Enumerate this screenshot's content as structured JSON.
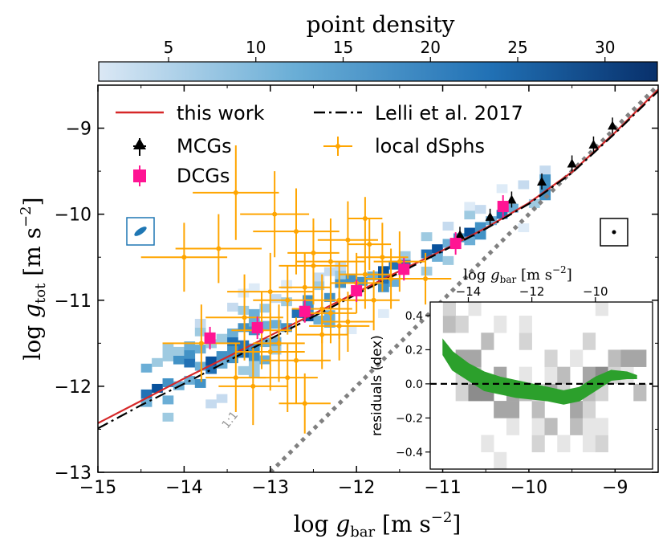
{
  "colorbar": {
    "label": "point density",
    "ticks": [
      5,
      10,
      15,
      20,
      25,
      30
    ],
    "range": [
      1,
      33
    ],
    "colors": [
      "#d6e6f4",
      "#08306b"
    ]
  },
  "chart_data": [
    {
      "type": "scatter",
      "xlabel": "log g_bar [m s^-2]",
      "ylabel": "log g_tot [m s^-2]",
      "xlim": [
        -15,
        -8.5
      ],
      "ylim": [
        -13,
        -8.5
      ],
      "xticks": [
        -15,
        -14,
        -13,
        -12,
        -11,
        -10,
        -9
      ],
      "yticks": [
        -13,
        -12,
        -11,
        -10,
        -9
      ],
      "grid": false,
      "legend_position": "top-left",
      "series": [
        {
          "name": "this work",
          "kind": "line",
          "color": "#d62728",
          "x": [
            -15,
            -14.5,
            -14,
            -13.5,
            -13,
            -12.5,
            -12,
            -11.5,
            -11,
            -10.5,
            -10,
            -9.5,
            -9,
            -8.5
          ],
          "y": [
            -12.43,
            -12.17,
            -11.91,
            -11.66,
            -11.41,
            -11.16,
            -10.91,
            -10.66,
            -10.42,
            -10.16,
            -9.87,
            -9.51,
            -9.05,
            -8.55
          ]
        },
        {
          "name": "Lelli et al. 2017",
          "kind": "line",
          "color": "#000000",
          "dash": "dash-dot",
          "x": [
            -15,
            -14.5,
            -14,
            -13.5,
            -13,
            -12.5,
            -12,
            -11.5,
            -11,
            -10.5,
            -10,
            -9.5,
            -9,
            -8.5
          ],
          "y": [
            -12.49,
            -12.22,
            -11.97,
            -11.71,
            -11.45,
            -11.19,
            -10.93,
            -10.68,
            -10.43,
            -10.17,
            -9.88,
            -9.52,
            -9.06,
            -8.57
          ]
        },
        {
          "name": "MCGs",
          "kind": "triangles",
          "color": "#000000",
          "x": [
            -10.8,
            -10.45,
            -10.2,
            -9.85,
            -9.5,
            -9.25,
            -9.03
          ],
          "y": [
            -10.24,
            -10.03,
            -9.83,
            -9.62,
            -9.41,
            -9.19,
            -8.97
          ]
        },
        {
          "name": "DCGs",
          "kind": "squares",
          "color": "#ff1493",
          "x": [
            -13.7,
            -13.15,
            -12.6,
            -12,
            -11.45,
            -10.85,
            -10.3
          ],
          "y": [
            -11.44,
            -11.32,
            -11.13,
            -10.89,
            -10.64,
            -10.34,
            -9.91
          ]
        },
        {
          "name": "local dSphs",
          "kind": "errorbars",
          "color": "#ffa500",
          "x": [
            -13.4,
            -12.95,
            -12.7,
            -12.5,
            -12.3,
            -12.1,
            -11.9,
            -11.7,
            -13.0,
            -12.8,
            -12.6,
            -12.4,
            -12.2,
            -12.0,
            -13.3,
            -13.1,
            -12.9,
            -12.7,
            -12.4,
            -11.8,
            -11.6,
            -12.2,
            -12.5,
            -13.6,
            -14.0,
            -13.8,
            -13.2,
            -12.8,
            -12.3,
            -12.1,
            -11.85,
            -11.5,
            -11.2,
            -11.9,
            -12.6,
            -13.0,
            -13.4
          ],
          "y": [
            -9.75,
            -10.0,
            -10.2,
            -10.45,
            -10.55,
            -10.3,
            -10.7,
            -10.5,
            -10.9,
            -11.0,
            -10.85,
            -11.1,
            -11.0,
            -10.8,
            -11.2,
            -11.35,
            -11.5,
            -11.7,
            -11.4,
            -11.0,
            -10.75,
            -11.3,
            -10.6,
            -10.4,
            -10.5,
            -11.5,
            -12.0,
            -11.9,
            -11.15,
            -11.25,
            -10.35,
            -10.55,
            -10.75,
            -10.05,
            -12.2,
            -11.6,
            -11.9
          ],
          "x_err": [
            0.5,
            0.4,
            0.5,
            0.3,
            0.4,
            0.35,
            0.3,
            0.3,
            0.5,
            0.4,
            0.3,
            0.35,
            0.4,
            0.3,
            0.45,
            0.35,
            0.3,
            0.4,
            0.3,
            0.3,
            0.3,
            0.35,
            0.4,
            0.5,
            0.5,
            0.45,
            0.4,
            0.35,
            0.3,
            0.3,
            0.25,
            0.3,
            0.3,
            0.2,
            0.3,
            0.4,
            0.35
          ],
          "y_err": [
            0.55,
            0.5,
            0.5,
            0.4,
            0.5,
            0.45,
            0.4,
            0.4,
            0.45,
            0.4,
            0.4,
            0.4,
            0.45,
            0.35,
            0.5,
            0.45,
            0.45,
            0.5,
            0.4,
            0.35,
            0.35,
            0.4,
            0.45,
            0.4,
            0.4,
            0.45,
            0.45,
            0.4,
            0.35,
            0.35,
            0.3,
            0.35,
            0.3,
            0.25,
            0.35,
            0.45,
            0.4
          ]
        },
        {
          "name": "1:1",
          "kind": "line",
          "color": "#808080",
          "dash": "dotted",
          "x": [
            -13,
            -12.5,
            -12,
            -11.5,
            -11,
            -10.5,
            -10,
            -9.5,
            -9,
            -8.5
          ],
          "y": [
            -13,
            -12.5,
            -12,
            -11.5,
            -11,
            -10.5,
            -10,
            -9.5,
            -9,
            -8.5
          ]
        }
      ],
      "annotations": [
        {
          "text": "1:1",
          "x": -13.5,
          "y": -12.5,
          "color": "#999999",
          "rotation": -52
        }
      ]
    },
    {
      "type": "area",
      "xlabel": "log g_bar [m s^-2]",
      "ylabel": "residuals (dex)",
      "xlim": [
        -15.2,
        -8.2
      ],
      "ylim": [
        -0.5,
        0.48
      ],
      "xticks": [
        -14,
        -12,
        -10
      ],
      "yticks": [
        -0.4,
        -0.2,
        0.0,
        0.2,
        0.4
      ],
      "xaxis_position": "top",
      "zero_line": true,
      "band": {
        "color": "#2ca02c",
        "x": [
          -14.8,
          -14.5,
          -14.0,
          -13.5,
          -13.0,
          -12.5,
          -12.0,
          -11.5,
          -11.0,
          -10.5,
          -10.0,
          -9.5,
          -9.0,
          -8.7
        ],
        "upper": [
          0.26,
          0.19,
          0.12,
          0.07,
          0.04,
          0.02,
          0.0,
          -0.02,
          -0.04,
          -0.02,
          0.04,
          0.08,
          0.07,
          0.05
        ],
        "lower": [
          0.17,
          0.08,
          0.02,
          -0.04,
          -0.06,
          -0.08,
          -0.09,
          -0.1,
          -0.12,
          -0.1,
          -0.04,
          0.02,
          0.03,
          0.03
        ]
      }
    }
  ]
}
